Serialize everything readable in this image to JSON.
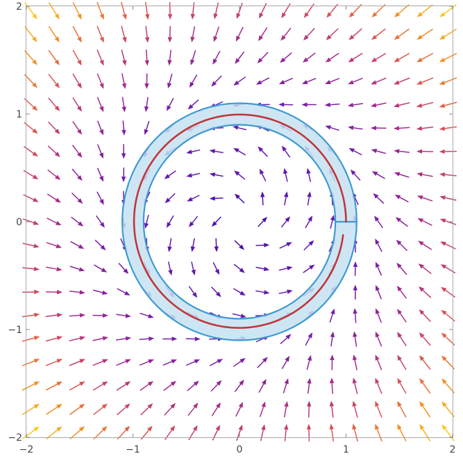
{
  "chart_data": {
    "type": "vector_field",
    "title": "",
    "xlabel": "",
    "ylabel": "",
    "xlim": [
      -2,
      2
    ],
    "ylim": [
      -2,
      2
    ],
    "xticks": [
      -2,
      -1,
      0,
      1,
      2
    ],
    "yticks": [
      -2,
      -1,
      0,
      1,
      2
    ],
    "xtick_labels": [
      "−2",
      "−1",
      "0",
      "1",
      "2"
    ],
    "ytick_labels": [
      "−2",
      "−1",
      "0",
      "1",
      "2"
    ],
    "grid": false,
    "field": {
      "description_formula": "u = x(1 - r^2) - y ; v = y(1 - r^2) + x",
      "samples_per_axis": 19,
      "color_scale": "plasma (dark blue = slow, yellow = fast)",
      "colors": [
        "#2a07a6",
        "#6a1bae",
        "#a0288f",
        "#d4495f",
        "#f28a24",
        "#f9c81e"
      ]
    },
    "annular_region": {
      "inner_radius": 0.9,
      "outer_radius": 1.1,
      "cut_angle_deg": 0,
      "fill_color": "#c6e2f2",
      "edge_color": "#3d9ad2"
    },
    "trajectory": {
      "shape": "spiral",
      "start": [
        1.0,
        0.0
      ],
      "start_radius": 1.0,
      "end_radius": 0.98,
      "turns": 0.98,
      "color": "#c0363a"
    }
  }
}
